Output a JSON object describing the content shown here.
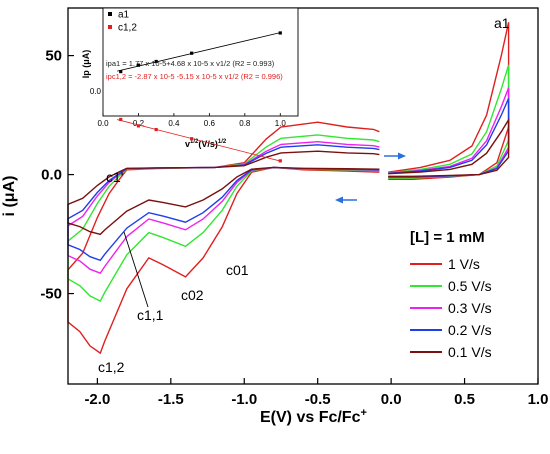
{
  "chart_data": [
    {
      "type": "line",
      "xlabel": "E(V) vs Fc/Fc",
      "xlabel_sup": "+",
      "ylabel": "i (μA)",
      "xlim": [
        -2.2,
        1.0
      ],
      "ylim": [
        -88,
        70
      ],
      "x_ticks": [
        "-2.0",
        "-1.5",
        "-1.0",
        "-0.5",
        "0.0",
        "0.5",
        "1.0"
      ],
      "y_ticks": [
        "50",
        "0.0",
        "-50"
      ],
      "legend_title": "[L] = 1 mM",
      "legend_position": "lower-right",
      "series": [
        {
          "name": "1 V/s",
          "color": "#e02020",
          "scale": 1.0
        },
        {
          "name": "0.5 V/s",
          "color": "#33e633",
          "scale": 0.72
        },
        {
          "name": "0.3 V/s",
          "color": "#ee22ee",
          "scale": 0.57
        },
        {
          "name": "0.2 V/s",
          "color": "#1f3fe8",
          "scale": 0.5
        },
        {
          "name": "0.1 V/s",
          "color": "#7a1010",
          "scale": 0.36
        }
      ],
      "annotations": [
        "a1",
        "c1'",
        "c1,1",
        "c1,2",
        "c02",
        "c01"
      ]
    },
    {
      "type": "scatter",
      "xlabel": "v",
      "xlabel_sup": "1/2",
      "xlabel_mid": "(V/s)",
      "xlabel_end": "1/2",
      "ylabel": "Ip (μA)",
      "xlim": [
        0.0,
        1.1
      ],
      "x_ticks": [
        "0.0",
        "0.2",
        "0.4",
        "0.6",
        "0.8",
        "1.0"
      ],
      "y_ticks": [
        "0.0"
      ],
      "series": [
        {
          "name": "a1",
          "color": "#000000",
          "x": [
            0.1,
            0.2,
            0.3,
            0.5,
            1.0
          ],
          "y": [
            20,
            27,
            31,
            40,
            62
          ]
        },
        {
          "name": "c1,2",
          "color": "#e02020",
          "x": [
            0.1,
            0.2,
            0.3,
            0.5,
            1.0
          ],
          "y": [
            -32,
            -39,
            -43,
            -53,
            -77
          ]
        }
      ],
      "equations": [
        "ipa1 = 1.77 x 10-5+4.68 x 10-5 x v1/2 (R2 = 0.993)",
        "ipc1,2 = -2.87 x 10-5 -5.15 x 10-5 x v1/2 (R2 = 0.996)"
      ]
    }
  ]
}
